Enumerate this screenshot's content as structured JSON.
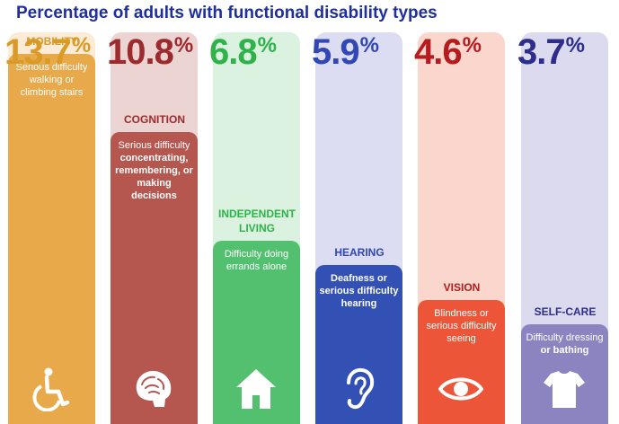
{
  "title": "Percentage of adults with functional disability types",
  "chart_data": {
    "type": "bar",
    "title": "Percentage of adults with functional disability types",
    "categories": [
      "MOBILITY",
      "COGNITION",
      "INDEPENDENT LIVING",
      "HEARING",
      "VISION",
      "SELF-CARE"
    ],
    "values": [
      13.7,
      10.8,
      6.8,
      5.9,
      4.6,
      3.7
    ],
    "value_suffix": "%",
    "descriptions": [
      "Serious difficulty walking or climbing stairs",
      "Serious difficulty concentrating, remembering, or making decisions",
      "Difficulty doing errands alone",
      "Deafness or serious difficulty hearing",
      "Blindness or serious difficulty seeing",
      "Difficulty dressing or bathing"
    ],
    "ylim": [
      0,
      14.5
    ],
    "colors": {
      "mobility": {
        "bar": "#e8a94a",
        "bg": "#fcecd7",
        "text": "#da9a27"
      },
      "cognition": {
        "bar": "#b5564f",
        "bg": "#ebd4d1",
        "text": "#9c2a2e"
      },
      "independent": {
        "bar": "#52c06f",
        "bg": "#dbf2e0",
        "text": "#2fb24a"
      },
      "hearing": {
        "bar": "#3350b4",
        "bg": "#dcdcf2",
        "text": "#3047b5"
      },
      "vision": {
        "bar": "#ed5538",
        "bg": "#fbd6cc",
        "text": "#b61c1f"
      },
      "selfcare": {
        "bar": "#8c84c1",
        "bg": "#dbdaee",
        "text": "#2d2d8c"
      }
    },
    "icons": [
      "wheelchair-icon",
      "brain-icon",
      "house-icon",
      "ear-icon",
      "eye-icon",
      "shirt-icon"
    ]
  }
}
